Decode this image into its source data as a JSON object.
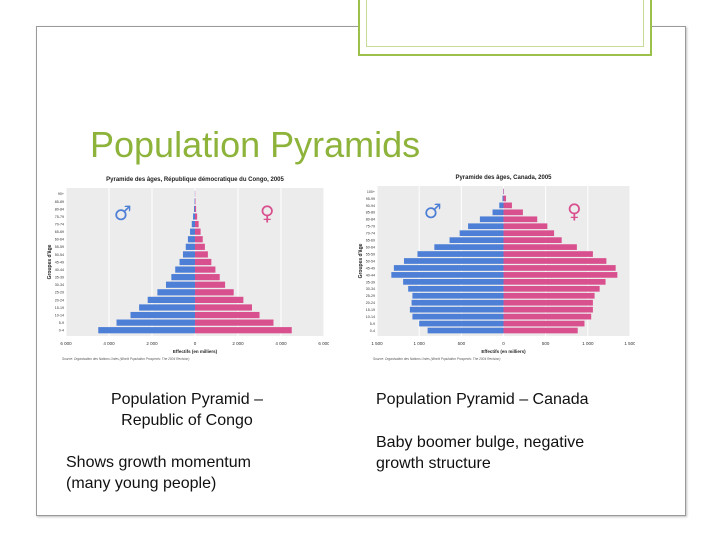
{
  "slide": {
    "title": "Population Pyramids",
    "left_caption": "Population Pyramid –\nRepublic of Congo",
    "left_note": "Shows growth momentum\n(many young people)",
    "right_caption": "Population Pyramid – Canada",
    "right_note": "Baby boomer bulge, negative\ngrowth structure",
    "colors": {
      "accent": "#8db33a",
      "male": "#4d7fd6",
      "female": "#d9508f"
    }
  },
  "chart_data": [
    {
      "type": "bar",
      "title": "Pyramide des âges, République démocratique du Congo, 2005",
      "ylabel": "Groupes d'âge",
      "xlabel": "Effectifs (en milliers)",
      "source": "Source: Organisation des Nations Unies (World Population Prospects: The 2004 Revision)",
      "legend": [
        "♂",
        "♀"
      ],
      "xlim": [
        -6000,
        6000
      ],
      "x_ticks": [
        "6 000",
        "4 000",
        "2 000",
        "0",
        "2 000",
        "4 000",
        "6 000"
      ],
      "categories": [
        "0-4",
        "5-9",
        "10-14",
        "15-19",
        "20-24",
        "25-29",
        "30-34",
        "35-39",
        "40-44",
        "45-49",
        "50-54",
        "55-59",
        "60-64",
        "65-69",
        "70-74",
        "75-79",
        "80-84",
        "85-89",
        "90+"
      ],
      "series": [
        {
          "name": "♂",
          "values": [
            4500,
            3650,
            3000,
            2600,
            2200,
            1750,
            1350,
            1100,
            920,
            720,
            560,
            430,
            330,
            230,
            150,
            90,
            45,
            20,
            8
          ]
        },
        {
          "name": "♀",
          "values": [
            4500,
            3650,
            3000,
            2650,
            2250,
            1800,
            1400,
            1150,
            950,
            760,
            600,
            460,
            360,
            260,
            170,
            100,
            50,
            22,
            10
          ]
        }
      ]
    },
    {
      "type": "bar",
      "title": "Pyramide des âges, Canada, 2005",
      "ylabel": "Groupes d'âge",
      "xlabel": "Effectifs (en milliers)",
      "source": "Source: Organisation des Nations Unies (World Population Prospects: The 2004 Revision)",
      "legend": [
        "♂",
        "♀"
      ],
      "xlim": [
        -1500,
        1500
      ],
      "x_ticks": [
        "1 500",
        "1 000",
        "500",
        "0",
        "500",
        "1 000",
        "1 500"
      ],
      "categories": [
        "0-4",
        "5-9",
        "10-14",
        "15-19",
        "20-24",
        "25-29",
        "30-34",
        "35-39",
        "40-44",
        "45-49",
        "50-54",
        "55-59",
        "60-64",
        "65-69",
        "70-74",
        "75-79",
        "80-84",
        "85-89",
        "90-94",
        "95-99",
        "100+"
      ],
      "series": [
        {
          "name": "♂",
          "values": [
            900,
            1000,
            1080,
            1110,
            1090,
            1080,
            1130,
            1190,
            1330,
            1300,
            1180,
            1020,
            820,
            640,
            520,
            420,
            280,
            130,
            50,
            12,
            3
          ]
        },
        {
          "name": "♀",
          "values": [
            880,
            960,
            1040,
            1060,
            1060,
            1080,
            1140,
            1210,
            1350,
            1330,
            1220,
            1060,
            870,
            690,
            600,
            520,
            400,
            230,
            100,
            30,
            6
          ]
        }
      ]
    }
  ]
}
